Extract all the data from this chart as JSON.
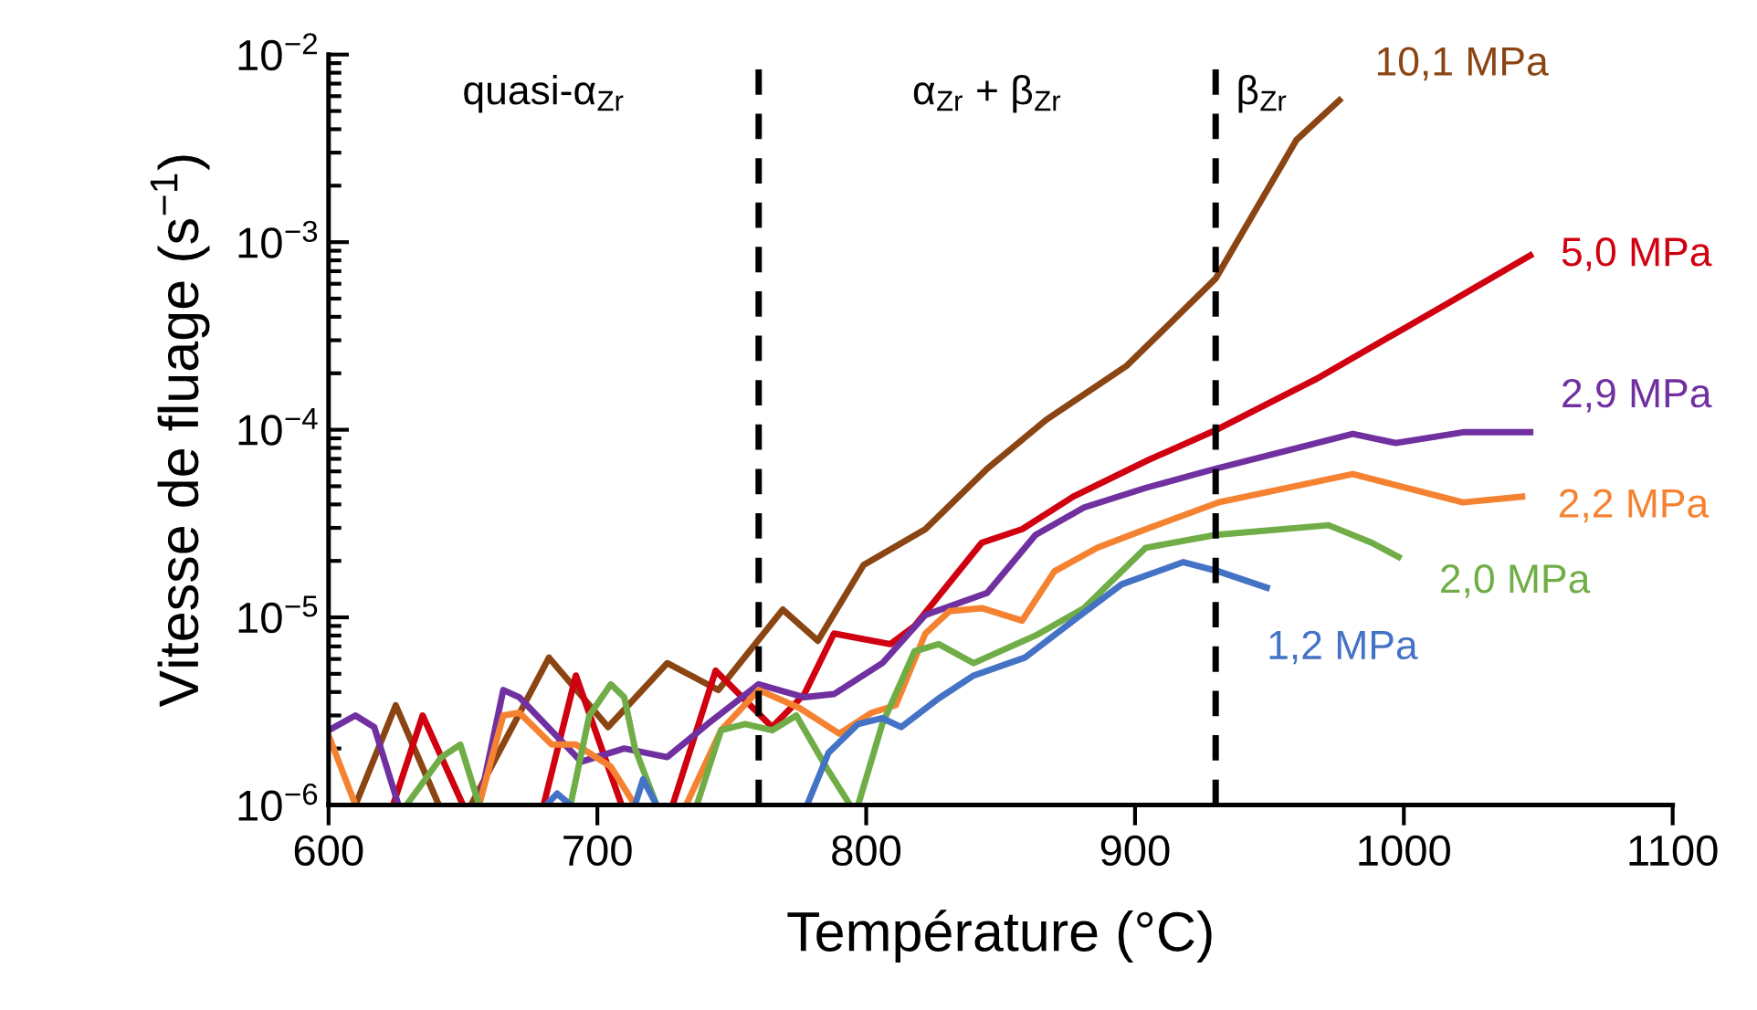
{
  "chart_data": {
    "type": "line",
    "xlabel": "Température (°C)",
    "ylabel": "Vitesse de fluage (s$^{−1}$)",
    "log": "y",
    "xlim": [
      600,
      1100
    ],
    "xticks": [
      600,
      700,
      800,
      900,
      1000,
      1100
    ],
    "ylim": [
      1e-06,
      0.01
    ],
    "yticks": [
      {
        "value": 1e-06,
        "label": "10$^{−6}$"
      },
      {
        "value": 1e-05,
        "label": "10$^{−5}$"
      },
      {
        "value": 0.0001,
        "label": "10$^{−4}$"
      },
      {
        "value": 0.001,
        "label": "10$^{−3}$"
      },
      {
        "value": 0.01,
        "label": "10$^{−2}$"
      }
    ],
    "grid": false,
    "legend": false,
    "marker": "none",
    "line_style": "solid",
    "ref_lines": [
      {
        "axis": "x",
        "value": 760,
        "color": "#000000",
        "line_style": "dashed"
      },
      {
        "axis": "x",
        "value": 930,
        "color": "#000000",
        "line_style": "dashed"
      }
    ],
    "annotations": [
      "quasi-α$_{Zr}$",
      "α$_{Zr}$ + β$_{Zr}$",
      "β$_{Zr}$"
    ],
    "series": [
      {
        "name": "10,1 MPa",
        "color": "#8b4513",
        "x": [
          610,
          625,
          641,
          null,
          653,
          682,
          704,
          726,
          745,
          769,
          782,
          799,
          822,
          845,
          867,
          897,
          930,
          960,
          976
        ],
        "values": [
          1e-06,
          3.4e-06,
          1e-06,
          null,
          1e-06,
          6.1e-06,
          2.6e-06,
          5.7e-06,
          4.1e-06,
          1.1e-05,
          7.5e-06,
          1.9e-05,
          2.95e-05,
          6.2e-05,
          0.000113,
          0.00022,
          0.00064,
          0.0035,
          0.0057
        ]
      },
      {
        "name": "5,0 MPa",
        "color": "#d00010",
        "x": [
          624,
          635,
          650,
          null,
          680,
          692,
          709,
          null,
          728,
          744,
          765,
          777,
          788,
          809,
          818,
          843,
          858,
          877,
          904,
          931,
          967,
          1015,
          1047
        ],
        "values": [
          1e-06,
          3e-06,
          1e-06,
          null,
          1e-06,
          4.9e-06,
          1e-06,
          null,
          1e-06,
          5.2e-06,
          2.6e-06,
          3.9e-06,
          8.2e-06,
          7.2e-06,
          9e-06,
          2.5e-05,
          2.95e-05,
          4.4e-05,
          6.8e-05,
          0.000101,
          0.000185,
          0.00046,
          0.00085
        ]
      },
      {
        "name": "2,9 MPa",
        "color": "#7030a0",
        "x": [
          600,
          610,
          617,
          626,
          null,
          656,
          665,
          671,
          694,
          710,
          726,
          741,
          760,
          777,
          788,
          806,
          822,
          845,
          863,
          881,
          904,
          930,
          981,
          997,
          1022,
          1047
        ],
        "values": [
          2.5e-06,
          3e-06,
          2.6e-06,
          1e-06,
          null,
          1e-06,
          4.1e-06,
          3.75e-06,
          1.7e-06,
          2e-06,
          1.8e-06,
          2.7e-06,
          4.4e-06,
          3.75e-06,
          3.9e-06,
          5.7e-06,
          1.03e-05,
          1.35e-05,
          2.75e-05,
          3.85e-05,
          4.9e-05,
          6.2e-05,
          9.5e-05,
          8.5e-05,
          9.7e-05,
          9.7e-05
        ]
      },
      {
        "name": "2,2 MPa",
        "color": "#f58231",
        "x": [
          600,
          610,
          null,
          656,
          665,
          671,
          683,
          692,
          705,
          714,
          null,
          733,
          746,
          760,
          775,
          790,
          802,
          811,
          822,
          831,
          843,
          858,
          870,
          886,
          904,
          931,
          981,
          1022,
          1044
        ],
        "values": [
          2.35e-06,
          1e-06,
          null,
          1e-06,
          3e-06,
          3.1e-06,
          2.1e-06,
          2.1e-06,
          1.6e-06,
          1e-06,
          null,
          1e-06,
          2.5e-06,
          4.1e-06,
          3.3e-06,
          2.4e-06,
          3.1e-06,
          3.4e-06,
          8.2e-06,
          1.08e-05,
          1.12e-05,
          9.6e-06,
          1.76e-05,
          2.35e-05,
          2.95e-05,
          4.1e-05,
          5.8e-05,
          4.1e-05,
          4.4e-05
        ]
      },
      {
        "name": "2,0 MPa",
        "color": "#70ad47",
        "x": [
          629,
          642,
          649,
          656,
          null,
          690,
          697,
          705,
          710,
          714,
          722,
          null,
          737,
          746,
          755,
          765,
          774,
          785,
          794,
          null,
          797,
          806,
          818,
          827,
          840,
          863,
          881,
          904,
          930,
          972,
          988,
          998
        ],
        "values": [
          1e-06,
          1.8e-06,
          2.1e-06,
          1e-06,
          null,
          1e-06,
          3e-06,
          4.4e-06,
          3.75e-06,
          2e-06,
          1e-06,
          null,
          1e-06,
          2.5e-06,
          2.7e-06,
          2.5e-06,
          3e-06,
          1.6e-06,
          1e-06,
          null,
          1e-06,
          2.7e-06,
          6.6e-06,
          7.2e-06,
          5.7e-06,
          8e-06,
          1.12e-05,
          2.35e-05,
          2.75e-05,
          3.1e-05,
          2.5e-05,
          2.1e-05
        ]
      },
      {
        "name": "1,2 MPa",
        "color": "#4472c4",
        "x": [
          681,
          685,
          690,
          null,
          714,
          717,
          722,
          null,
          778,
          786,
          797,
          806,
          813,
          827,
          840,
          859,
          877,
          895,
          918,
          931,
          949
        ],
        "values": [
          1e-06,
          1.15e-06,
          1e-06,
          null,
          1e-06,
          1.37e-06,
          1e-06,
          null,
          1e-06,
          1.9e-06,
          2.7e-06,
          2.9e-06,
          2.6e-06,
          3.7e-06,
          4.9e-06,
          6.1e-06,
          9.6e-06,
          1.5e-05,
          1.97e-05,
          1.76e-05,
          1.44e-05
        ]
      }
    ]
  }
}
